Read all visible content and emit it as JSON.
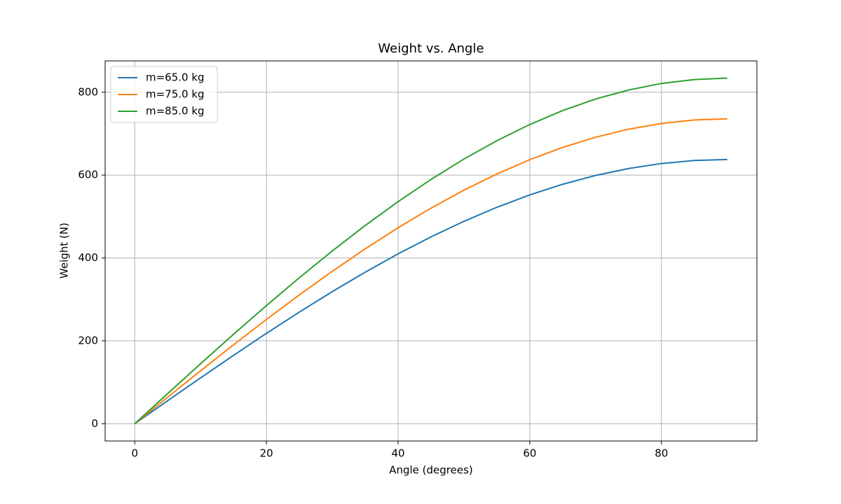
{
  "chart_data": {
    "type": "line",
    "title": "Weight vs. Angle",
    "x_label": "Angle (degrees)",
    "y_label": "Weight (N)",
    "x": [
      0,
      5,
      10,
      15,
      20,
      25,
      30,
      35,
      40,
      45,
      50,
      55,
      60,
      65,
      70,
      75,
      80,
      85,
      90
    ],
    "series": [
      {
        "name": "m=65.0 kg",
        "color": "#1f77b4",
        "values": [
          0,
          55.6,
          110.7,
          165.0,
          218.1,
          269.5,
          318.8,
          365.7,
          409.9,
          450.9,
          488.5,
          522.3,
          552.2,
          577.9,
          599.2,
          615.9,
          628.0,
          635.2,
          637.7
        ]
      },
      {
        "name": "m=75.0 kg",
        "color": "#ff7f0e",
        "values": [
          0,
          64.1,
          127.8,
          190.4,
          251.6,
          310.9,
          367.9,
          422.0,
          472.9,
          520.3,
          563.6,
          602.7,
          637.2,
          666.8,
          691.4,
          710.7,
          724.6,
          733.0,
          735.8
        ]
      },
      {
        "name": "m=85.0 kg",
        "color": "#2ca02c",
        "values": [
          0,
          72.7,
          144.8,
          215.8,
          285.2,
          352.4,
          416.9,
          478.3,
          536.0,
          589.6,
          638.8,
          683.1,
          722.1,
          755.7,
          783.6,
          805.4,
          821.2,
          830.7,
          833.9
        ]
      }
    ],
    "xlim": [
      -4.5,
      94.5
    ],
    "ylim": [
      -41.7,
      875.6
    ],
    "xticks": [
      0,
      20,
      40,
      60,
      80
    ],
    "yticks": [
      0,
      200,
      400,
      600,
      800
    ],
    "grid": true,
    "legend": "upper-left"
  }
}
